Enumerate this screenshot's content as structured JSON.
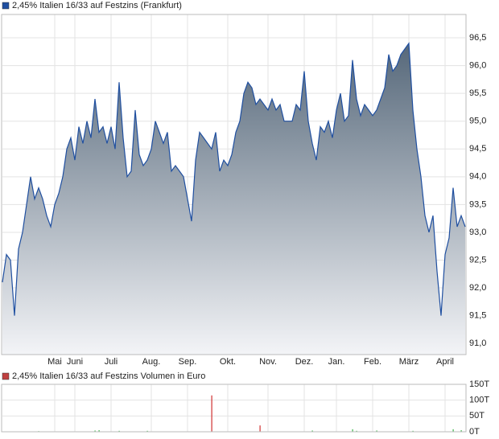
{
  "chart_data": [
    {
      "type": "area",
      "title": "2,45% Italien 16/33 auf Festzins (Frankfurt)",
      "series": [
        {
          "name": "2,45% Italien 16/33 auf Festzins (Frankfurt)",
          "color": "#1f4fa0",
          "values": [
            92.1,
            92.6,
            92.5,
            91.5,
            92.7,
            93.0,
            93.5,
            94.0,
            93.6,
            93.8,
            93.6,
            93.3,
            93.1,
            93.5,
            93.7,
            94.0,
            94.5,
            94.7,
            94.3,
            94.9,
            94.6,
            95.0,
            94.7,
            95.4,
            94.8,
            94.9,
            94.6,
            94.9,
            94.5,
            95.7,
            94.7,
            94.0,
            94.1,
            95.2,
            94.4,
            94.2,
            94.3,
            94.5,
            95.0,
            94.8,
            94.6,
            94.8,
            94.1,
            94.2,
            94.1,
            94.0,
            93.6,
            93.2,
            94.3,
            94.8,
            94.7,
            94.6,
            94.5,
            94.8,
            94.1,
            94.3,
            94.2,
            94.4,
            94.8,
            95.0,
            95.5,
            95.7,
            95.6,
            95.3,
            95.4,
            95.3,
            95.2,
            95.4,
            95.2,
            95.3,
            95.0,
            95.0,
            95.0,
            95.3,
            95.2,
            95.9,
            95.0,
            94.6,
            94.3,
            94.9,
            94.8,
            95.0,
            94.7,
            95.2,
            95.5,
            95.0,
            95.1,
            96.1,
            95.4,
            95.1,
            95.3,
            95.2,
            95.1,
            95.2,
            95.4,
            95.6,
            96.2,
            95.9,
            96.0,
            96.2,
            96.3,
            96.4,
            95.2,
            94.5,
            94.0,
            93.3,
            93.0,
            93.3,
            92.3,
            91.5,
            92.6,
            92.9,
            93.8,
            93.1,
            93.3,
            93.1
          ]
        }
      ],
      "xlim": [
        0,
        115
      ],
      "xticks": [
        {
          "value": 13,
          "label": "Mai"
        },
        {
          "value": 18,
          "label": "Juni"
        },
        {
          "value": 27,
          "label": "Juli"
        },
        {
          "value": 37,
          "label": "Aug."
        },
        {
          "value": 46,
          "label": "Sep."
        },
        {
          "value": 56,
          "label": "Okt."
        },
        {
          "value": 66,
          "label": "Nov."
        },
        {
          "value": 75,
          "label": "Dez."
        },
        {
          "value": 83,
          "label": "Jan."
        },
        {
          "value": 92,
          "label": "Feb."
        },
        {
          "value": 101,
          "label": "März"
        },
        {
          "value": 110,
          "label": "April"
        }
      ],
      "ylim": [
        90.8,
        96.92
      ],
      "yticks": [
        {
          "value": 91.0,
          "label": "91,0"
        },
        {
          "value": 91.5,
          "label": "91,5"
        },
        {
          "value": 92.0,
          "label": "92,0"
        },
        {
          "value": 92.5,
          "label": "92,5"
        },
        {
          "value": 93.0,
          "label": "93,0"
        },
        {
          "value": 93.5,
          "label": "93,5"
        },
        {
          "value": 94.0,
          "label": "94,0"
        },
        {
          "value": 94.5,
          "label": "94,5"
        },
        {
          "value": 95.0,
          "label": "95,0"
        },
        {
          "value": 95.5,
          "label": "95,5"
        },
        {
          "value": 96.0,
          "label": "96,0"
        },
        {
          "value": 96.5,
          "label": "96,5"
        }
      ],
      "grid": true
    },
    {
      "type": "bar",
      "title": "2,45% Italien 16/33 auf Festzins Volumen in Euro",
      "legend_color": "#c04040",
      "x": [
        9,
        23,
        24,
        29,
        36,
        52,
        64,
        77,
        87,
        88,
        93,
        102,
        112,
        114
      ],
      "values": [
        2,
        4,
        5,
        3,
        3,
        115,
        20,
        4,
        8,
        3,
        4,
        3,
        8,
        5
      ],
      "colors": [
        "#3cb44b",
        "#3cb44b",
        "#3cb44b",
        "#3cb44b",
        "#3cb44b",
        "#d03030",
        "#d03030",
        "#3cb44b",
        "#3cb44b",
        "#3cb44b",
        "#3cb44b",
        "#3cb44b",
        "#3cb44b",
        "#3cb44b"
      ],
      "xlim": [
        0,
        115
      ],
      "ylim": [
        0,
        150
      ],
      "yticks": [
        {
          "value": 0,
          "label": "0T"
        },
        {
          "value": 50,
          "label": "50T"
        },
        {
          "value": 100,
          "label": "100T"
        },
        {
          "value": 150,
          "label": "150T"
        }
      ],
      "grid": true
    }
  ]
}
